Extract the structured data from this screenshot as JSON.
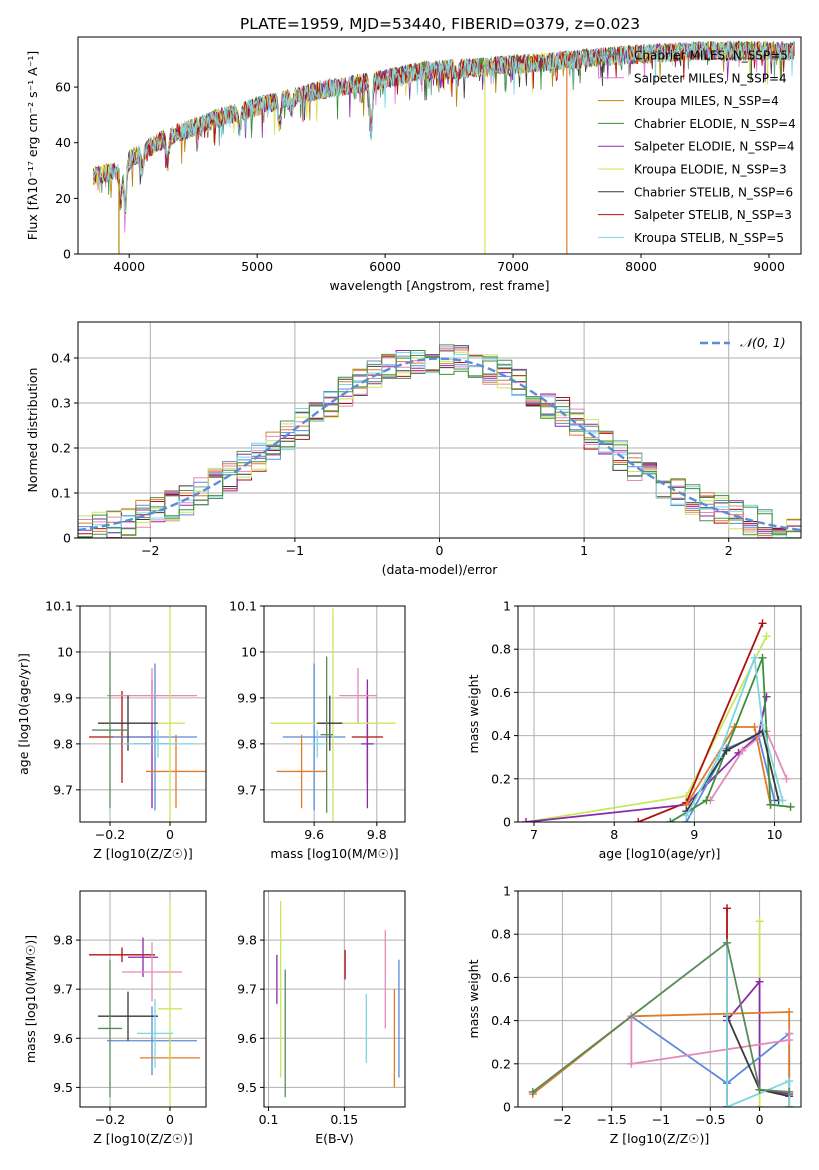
{
  "figure": {
    "title": "PLATE=1959, MJD=53440, FIBERID=0379, z=0.023"
  },
  "colors": {
    "chabrier_miles": "#5a9e8a",
    "salpeter_miles": "#e07ad8",
    "kroupa_miles": "#b8860b",
    "chabrier_elodie": "#3e8e3e",
    "salpeter_elodie": "#8b2aa8",
    "kroupa_elodie": "#dede55",
    "chabrier_stelib": "#3a3a3a",
    "salpeter_stelib": "#b01010",
    "kroupa_stelib": "#7fd6e3",
    "hist_blue": "#5b8bd9",
    "hist_orange": "#e07b2a",
    "hist_pink": "#e48ab8",
    "hist_lime": "#c8e85a",
    "hist_green": "#5a8a5a",
    "normal_curve": "#5b8bd9",
    "grid": "#b0b0b0"
  },
  "chart_data": [
    {
      "id": "spectrum",
      "type": "line",
      "title": "PLATE=1959, MJD=53440, FIBERID=0379, z=0.023",
      "xlabel": "wavelength [Angstrom, rest frame]",
      "ylabel": "Flux [fλ10⁻¹⁷ erg cm⁻² s⁻¹ A⁻¹]",
      "xlim": [
        3600,
        9250
      ],
      "ylim": [
        0,
        78
      ],
      "xticks": [
        4000,
        5000,
        6000,
        7000,
        8000,
        9000
      ],
      "yticks": [
        0,
        20,
        40,
        60
      ],
      "grid": false,
      "legend_position": "right",
      "legend": [
        {
          "label": "Chabrier MILES, N_SSP=5",
          "color": "#5a9e8a"
        },
        {
          "label": "Salpeter MILES, N_SSP=4",
          "color": "#e07ad8"
        },
        {
          "label": "Kroupa MILES, N_SSP=4",
          "color": "#b8860b"
        },
        {
          "label": "Chabrier ELODIE, N_SSP=4",
          "color": "#3e8e3e"
        },
        {
          "label": "Salpeter ELODIE, N_SSP=4",
          "color": "#8b2aa8"
        },
        {
          "label": "Kroupa ELODIE, N_SSP=3",
          "color": "#dede55"
        },
        {
          "label": "Chabrier STELIB, N_SSP=6",
          "color": "#3a3a3a"
        },
        {
          "label": "Salpeter STELIB, N_SSP=3",
          "color": "#b01010"
        },
        {
          "label": "Kroupa STELIB, N_SSP=5",
          "color": "#7fd6e3"
        }
      ],
      "continuum": [
        [
          3720,
          28
        ],
        [
          3900,
          30
        ],
        [
          4000,
          34
        ],
        [
          4300,
          42
        ],
        [
          4700,
          49
        ],
        [
          5000,
          53
        ],
        [
          5500,
          59
        ],
        [
          5900,
          62
        ],
        [
          6300,
          66
        ],
        [
          6700,
          67
        ],
        [
          7000,
          68
        ],
        [
          7500,
          70
        ],
        [
          8000,
          72
        ],
        [
          8500,
          73
        ],
        [
          9000,
          73
        ],
        [
          9200,
          73
        ]
      ],
      "absorption_lines": [
        [
          3934,
          12
        ],
        [
          3969,
          16
        ],
        [
          4102,
          6
        ],
        [
          4300,
          9
        ],
        [
          4861,
          6
        ],
        [
          5175,
          9
        ],
        [
          5270,
          4
        ],
        [
          5890,
          18
        ],
        [
          6563,
          4
        ]
      ],
      "model_cutoffs": [
        {
          "color": "#b8860b",
          "x": 3920,
          "side": "left"
        },
        {
          "color": "#dede55",
          "x": 6780,
          "side": "right"
        },
        {
          "color": "#e07b2a",
          "x": 7420,
          "side": "right"
        }
      ]
    },
    {
      "id": "residuals",
      "type": "line",
      "xlabel": "(data-model)/error",
      "ylabel": "Normed distribution",
      "xlim": [
        -2.5,
        2.5
      ],
      "ylim": [
        0,
        0.48
      ],
      "xticks": [
        -2,
        -1,
        0,
        1,
        2
      ],
      "yticks": [
        0.0,
        0.1,
        0.2,
        0.3,
        0.4
      ],
      "grid": true,
      "legend_position": "top-right",
      "legend_label": "𝒩(0, 1)",
      "bin_width": 0.1,
      "normal": {
        "mu": 0,
        "sigma": 1
      },
      "hist_colors": [
        "#3a3a3a",
        "#b01010",
        "#8b2aa8",
        "#5b8bd9",
        "#e07b2a",
        "#e48ab8",
        "#c8e85a",
        "#5a8a5a",
        "#7fd6e3",
        "#3e8e3e"
      ]
    },
    {
      "id": "age_vs_Z",
      "type": "scatter",
      "xlabel": "Z [log10(Z/Z☉)]",
      "ylabel": "age  [log10(age/yr)]",
      "xlim": [
        -0.3,
        0.12
      ],
      "ylim": [
        9.63,
        10.1
      ],
      "xticks": [
        -0.2,
        0.0
      ],
      "yticks": [
        9.7,
        9.8,
        9.9,
        10.0,
        10.1
      ],
      "grid": true,
      "points": [
        {
          "x": -0.16,
          "y": 9.815,
          "xerr": 0.11,
          "yerr": 0.1,
          "color": "#b01010"
        },
        {
          "x": -0.06,
          "y": 9.8,
          "xerr": 0.06,
          "yerr": 0.14,
          "color": "#8b2aa8"
        },
        {
          "x": -0.05,
          "y": 9.815,
          "xerr": 0.14,
          "yerr": 0.16,
          "color": "#5b8bd9"
        },
        {
          "x": 0.02,
          "y": 9.74,
          "xerr": 0.1,
          "yerr": 0.08,
          "color": "#e07b2a"
        },
        {
          "x": -0.06,
          "y": 9.905,
          "xerr": 0.15,
          "yerr": 0.06,
          "color": "#e48ab8"
        },
        {
          "x": 0.0,
          "y": 9.845,
          "xerr": 0.05,
          "yerr": 0.25,
          "color": "#c8e85a"
        },
        {
          "x": -0.14,
          "y": 9.845,
          "xerr": 0.1,
          "yerr": 0.06,
          "color": "#3a3a3a"
        },
        {
          "x": -0.2,
          "y": 9.83,
          "xerr": 0.06,
          "yerr": 0.17,
          "color": "#5a8a5a"
        },
        {
          "x": -0.04,
          "y": 9.8,
          "xerr": 0.12,
          "yerr": 0.03,
          "color": "#7fd6e3"
        }
      ]
    },
    {
      "id": "age_vs_mass",
      "type": "scatter",
      "xlabel": "mass [log10(M/M☉)]",
      "ylabel": "",
      "xlim": [
        9.44,
        9.89
      ],
      "ylim": [
        9.63,
        10.1
      ],
      "xticks": [
        9.6,
        9.8
      ],
      "yticks": [
        9.7,
        9.8,
        9.9,
        10.0,
        10.1
      ],
      "grid": true,
      "points": [
        {
          "x": 9.77,
          "y": 9.815,
          "xerr": 0.05,
          "yerr": 0.1,
          "color": "#b01010"
        },
        {
          "x": 9.77,
          "y": 9.8,
          "xerr": 0.02,
          "yerr": 0.14,
          "color": "#8b2aa8"
        },
        {
          "x": 9.6,
          "y": 9.815,
          "xerr": 0.1,
          "yerr": 0.16,
          "color": "#5b8bd9"
        },
        {
          "x": 9.56,
          "y": 9.74,
          "xerr": 0.08,
          "yerr": 0.08,
          "color": "#e07b2a"
        },
        {
          "x": 9.74,
          "y": 9.905,
          "xerr": 0.06,
          "yerr": 0.06,
          "color": "#e48ab8"
        },
        {
          "x": 9.66,
          "y": 9.845,
          "xerr": 0.2,
          "yerr": 0.25,
          "color": "#c8e85a"
        },
        {
          "x": 9.65,
          "y": 9.845,
          "xerr": 0.04,
          "yerr": 0.06,
          "color": "#3a3a3a"
        },
        {
          "x": 9.64,
          "y": 9.82,
          "xerr": 0.02,
          "yerr": 0.17,
          "color": "#5a8a5a"
        },
        {
          "x": 9.61,
          "y": 9.8,
          "xerr": 0.03,
          "yerr": 0.03,
          "color": "#7fd6e3"
        }
      ]
    },
    {
      "id": "massweight_vs_age",
      "type": "line",
      "xlabel": "age  [log10(age/yr)]",
      "ylabel": "mass weight",
      "xlim": [
        6.8,
        10.33
      ],
      "ylim": [
        0,
        1.0
      ],
      "xticks": [
        7,
        8,
        9,
        10
      ],
      "yticks": [
        0.0,
        0.2,
        0.4,
        0.6,
        0.8,
        1.0
      ],
      "grid": true,
      "series": [
        {
          "color": "#c8e85a",
          "x": [
            6.9,
            8.9,
            9.9
          ],
          "y": [
            0.0,
            0.12,
            0.86
          ]
        },
        {
          "color": "#b01010",
          "x": [
            8.3,
            8.9,
            9.85
          ],
          "y": [
            0.0,
            0.09,
            0.92
          ]
        },
        {
          "color": "#8b2aa8",
          "x": [
            6.9,
            8.9,
            9.55,
            9.8,
            9.9
          ],
          "y": [
            0.0,
            0.08,
            0.32,
            0.4,
            0.58
          ]
        },
        {
          "color": "#5b8bd9",
          "x": [
            8.9,
            9.4,
            9.8,
            10.0
          ],
          "y": [
            0.0,
            0.34,
            0.4,
            0.1
          ]
        },
        {
          "color": "#e07b2a",
          "x": [
            8.9,
            9.5,
            9.75,
            9.95
          ],
          "y": [
            0.08,
            0.44,
            0.44,
            0.08
          ]
        },
        {
          "color": "#e48ab8",
          "x": [
            9.2,
            9.6,
            9.9,
            10.15
          ],
          "y": [
            0.1,
            0.33,
            0.42,
            0.2
          ]
        },
        {
          "color": "#3e8e3e",
          "x": [
            8.7,
            9.15,
            9.85,
            9.95,
            10.2
          ],
          "y": [
            0.0,
            0.1,
            0.76,
            0.08,
            0.07
          ]
        },
        {
          "color": "#3a3a3a",
          "x": [
            8.9,
            9.4,
            9.85,
            10.05
          ],
          "y": [
            0.05,
            0.33,
            0.42,
            0.1
          ]
        },
        {
          "color": "#7fd6e3",
          "x": [
            8.9,
            9.3,
            9.75,
            9.85,
            10.1
          ],
          "y": [
            0.03,
            0.3,
            0.76,
            0.45,
            0.1
          ]
        }
      ]
    },
    {
      "id": "mass_vs_Z",
      "type": "scatter",
      "xlabel": "Z [log10(Z/Z☉)]",
      "ylabel": "mass [log10(M/M☉)]",
      "xlim": [
        -0.3,
        0.12
      ],
      "ylim": [
        9.46,
        9.9
      ],
      "xticks": [
        -0.2,
        0.0
      ],
      "yticks": [
        9.5,
        9.6,
        9.7,
        9.8
      ],
      "grid": true,
      "points": [
        {
          "x": -0.16,
          "y": 9.77,
          "xerr": 0.11,
          "yerr": 0.015,
          "color": "#b01010"
        },
        {
          "x": -0.09,
          "y": 9.765,
          "xerr": 0.05,
          "yerr": 0.04,
          "color": "#8b2aa8"
        },
        {
          "x": -0.06,
          "y": 9.595,
          "xerr": 0.15,
          "yerr": 0.07,
          "color": "#5b8bd9"
        },
        {
          "x": 0.0,
          "y": 9.56,
          "xerr": 0.1,
          "yerr": 0.05,
          "color": "#e07b2a"
        },
        {
          "x": -0.06,
          "y": 9.735,
          "xerr": 0.1,
          "yerr": 0.06,
          "color": "#e48ab8"
        },
        {
          "x": 0.0,
          "y": 9.66,
          "xerr": 0.04,
          "yerr": 0.22,
          "color": "#c8e85a"
        },
        {
          "x": -0.14,
          "y": 9.645,
          "xerr": 0.1,
          "yerr": 0.05,
          "color": "#3a3a3a"
        },
        {
          "x": -0.2,
          "y": 9.62,
          "xerr": 0.04,
          "yerr": 0.14,
          "color": "#5a8a5a"
        },
        {
          "x": -0.05,
          "y": 9.61,
          "xerr": 0.06,
          "yerr": 0.07,
          "color": "#7fd6e3"
        }
      ]
    },
    {
      "id": "mass_vs_ebv",
      "type": "scatter",
      "xlabel": "E(B-V)",
      "ylabel": "",
      "xlim": [
        0.097,
        0.19
      ],
      "ylim": [
        9.46,
        9.9
      ],
      "xticks": [
        0.1,
        0.15
      ],
      "yticks": [
        9.5,
        9.6,
        9.7,
        9.8
      ],
      "grid": true,
      "points": [
        {
          "x": 0.1505,
          "y": 9.75,
          "yerr": 0.03,
          "color": "#b01010"
        },
        {
          "x": 0.1055,
          "y": 9.72,
          "yerr": 0.05,
          "color": "#8b2aa8"
        },
        {
          "x": 0.186,
          "y": 9.64,
          "yerr": 0.12,
          "color": "#5b8bd9"
        },
        {
          "x": 0.183,
          "y": 9.6,
          "yerr": 0.1,
          "color": "#e07b2a"
        },
        {
          "x": 0.177,
          "y": 9.72,
          "yerr": 0.1,
          "color": "#e48ab8"
        },
        {
          "x": 0.108,
          "y": 9.7,
          "yerr": 0.18,
          "color": "#c8e85a"
        },
        {
          "x": 0.111,
          "y": 9.61,
          "yerr": 0.13,
          "color": "#5a8a5a"
        },
        {
          "x": 0.1645,
          "y": 9.62,
          "yerr": 0.07,
          "color": "#7fd6e3"
        }
      ]
    },
    {
      "id": "massweight_vs_Z",
      "type": "line",
      "xlabel": "Z [log10(Z/Z☉)]",
      "ylabel": "mass weight",
      "xlim": [
        -2.45,
        0.42
      ],
      "ylim": [
        0,
        1.0
      ],
      "xticks": [
        -2.0,
        -1.5,
        -1.0,
        -0.5,
        0.0
      ],
      "yticks": [
        0.0,
        0.2,
        0.4,
        0.6,
        0.8,
        1.0
      ],
      "grid": true,
      "series": [
        {
          "color": "#b01010",
          "x": [
            -0.33,
            -0.33,
            -0.33
          ],
          "y": [
            0.0,
            0.92,
            0.0
          ]
        },
        {
          "color": "#c8e85a",
          "x": [
            0.0,
            0.0,
            0.0
          ],
          "y": [
            0.0,
            0.86,
            0.0
          ]
        },
        {
          "color": "#8b2aa8",
          "x": [
            -0.33,
            -0.33,
            0.0,
            0.0,
            0.3
          ],
          "y": [
            0.0,
            0.4,
            0.58,
            0.08,
            0.06
          ]
        },
        {
          "color": "#5b8bd9",
          "x": [
            -1.3,
            -0.33,
            0.3,
            0.3
          ],
          "y": [
            0.42,
            0.11,
            0.34,
            0.0
          ]
        },
        {
          "color": "#e07b2a",
          "x": [
            -2.3,
            -1.3,
            0.3,
            0.3
          ],
          "y": [
            0.06,
            0.42,
            0.44,
            0.0
          ]
        },
        {
          "color": "#e48ab8",
          "x": [
            -1.3,
            -1.3,
            0.3,
            0.3
          ],
          "y": [
            0.42,
            0.2,
            0.31,
            0.34
          ]
        },
        {
          "color": "#3a3a3a",
          "x": [
            -0.33,
            0.0,
            0.3
          ],
          "y": [
            0.42,
            0.08,
            0.05
          ]
        },
        {
          "color": "#7fd6e3",
          "x": [
            -0.33,
            -0.33,
            0.3,
            0.3
          ],
          "y": [
            0.76,
            0.0,
            0.12,
            0.0
          ]
        },
        {
          "color": "#5a8a5a",
          "x": [
            -2.3,
            -0.33,
            0.0,
            0.3
          ],
          "y": [
            0.07,
            0.76,
            0.08,
            0.07
          ]
        }
      ]
    }
  ]
}
